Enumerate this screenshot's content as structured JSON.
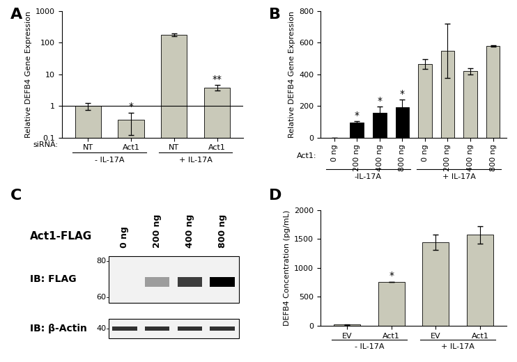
{
  "chart_data": [
    {
      "type": "bar",
      "panel": "A",
      "log": "y",
      "y_label": "Relative DEFB4 Gene Expression",
      "category_axis_label": "siRNA:",
      "categories": [
        "NT",
        "Act1",
        "NT",
        "Act1"
      ],
      "groups": [
        "- IL-17A",
        "+ IL-17A"
      ],
      "values": [
        1.0,
        0.37,
        175,
        3.8
      ],
      "errors": [
        0.25,
        0.25,
        15,
        0.8
      ],
      "significance": [
        null,
        "*",
        null,
        "**"
      ],
      "reference_line": 1,
      "color": "#c9c9b9",
      "ylim": [
        0.1,
        1000
      ],
      "yticks": [
        0.1,
        1,
        10,
        100,
        1000
      ]
    },
    {
      "type": "bar",
      "panel": "B",
      "y_label": "Relative DEFB4 Gene Expression",
      "category_axis_label": "Act1:",
      "categories": [
        "0 ng",
        "200 ng",
        "400 ng",
        "800 ng",
        "0 ng",
        "200 ng",
        "400 ng",
        "800 ng"
      ],
      "groups": [
        "-IL-17A",
        "+ IL-17A"
      ],
      "values": [
        0,
        95,
        155,
        193,
        465,
        548,
        420,
        578
      ],
      "errors": [
        0,
        8,
        40,
        45,
        30,
        170,
        20,
        5
      ],
      "significance": [
        null,
        "*",
        "*",
        "*",
        null,
        null,
        null,
        null
      ],
      "colors": [
        "#000000",
        "#000000",
        "#000000",
        "#000000",
        "#c9c9b9",
        "#c9c9b9",
        "#c9c9b9",
        "#c9c9b9"
      ],
      "ylim": [
        0,
        800
      ],
      "yticks": [
        0,
        200,
        400,
        600,
        800
      ]
    },
    {
      "type": "blot",
      "panel": "C",
      "title": "Act1-FLAG",
      "categories": [
        "0 ng",
        "200 ng",
        "400 ng",
        "800 ng"
      ],
      "series": [
        {
          "name": "IB: FLAG",
          "values": [
            0,
            0.35,
            0.75,
            1.0
          ],
          "marker_weights": [
            80,
            60
          ]
        },
        {
          "name": "IB: β-Actin",
          "values": [
            0.8,
            0.8,
            0.8,
            0.8
          ],
          "marker_weights": [
            40
          ]
        }
      ]
    },
    {
      "type": "bar",
      "panel": "D",
      "y_label": "DEFB4 Concentration (pg/mL)",
      "categories": [
        "EV",
        "Act1",
        "EV",
        "Act1"
      ],
      "groups": [
        "- IL-17A",
        "+ IL-17A"
      ],
      "values": [
        20,
        760,
        1440,
        1570
      ],
      "errors": [
        10,
        0,
        130,
        150
      ],
      "significance": [
        null,
        "*",
        null,
        null
      ],
      "color": "#c9c9b9",
      "ylim": [
        0,
        2000
      ],
      "yticks": [
        0,
        500,
        1000,
        1500,
        2000
      ]
    }
  ]
}
